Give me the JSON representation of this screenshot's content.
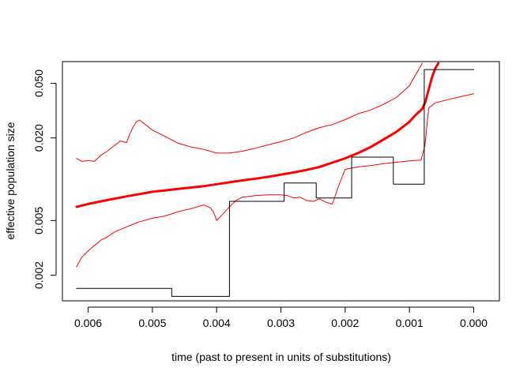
{
  "chart_data": {
    "type": "line",
    "title": "",
    "xlabel": "time (past to present in units of substitutions)",
    "ylabel": "effective population size",
    "x_reversed": true,
    "y_log": true,
    "xlim": [
      0.0064,
      -0.0004
    ],
    "ylim": [
      0.0013,
      0.072
    ],
    "x_ticks": [
      0.006,
      0.005,
      0.004,
      0.003,
      0.002,
      0.001,
      0.0
    ],
    "x_tick_labels": [
      "0.006",
      "0.005",
      "0.004",
      "0.003",
      "0.002",
      "0.001",
      "0.000"
    ],
    "y_ticks": [
      0.002,
      0.005,
      0.02,
      0.05
    ],
    "y_tick_labels": [
      "0.002",
      "0.005",
      "0.020",
      "0.050"
    ],
    "grid": false,
    "colors": {
      "estimate": "#ff0000",
      "truth": "#000000"
    },
    "series": [
      {
        "role": "median",
        "style": "thick-red",
        "x": [
          0.00618,
          0.006,
          0.0058,
          0.0056,
          0.0054,
          0.0052,
          0.005,
          0.0048,
          0.0046,
          0.0044,
          0.0042,
          0.004,
          0.0038,
          0.0036,
          0.0034,
          0.0032,
          0.003,
          0.0028,
          0.0026,
          0.0024,
          0.0022,
          0.002,
          0.0018,
          0.0016,
          0.0014,
          0.0012,
          0.001,
          0.0009,
          0.0008,
          0.00075,
          0.0007,
          0.00065,
          0.0006,
          0.00055
        ],
        "y": [
          0.0063,
          0.0066,
          0.0069,
          0.0072,
          0.0075,
          0.0078,
          0.0081,
          0.0083,
          0.0085,
          0.0087,
          0.0089,
          0.0092,
          0.0095,
          0.0098,
          0.0101,
          0.0104,
          0.0108,
          0.0112,
          0.0117,
          0.0123,
          0.0132,
          0.0142,
          0.0155,
          0.0172,
          0.0195,
          0.0222,
          0.0262,
          0.0295,
          0.0325,
          0.037,
          0.045,
          0.055,
          0.064,
          0.07
        ]
      },
      {
        "role": "upper",
        "style": "thin-red",
        "x": [
          0.00618,
          0.0061,
          0.006,
          0.0059,
          0.0058,
          0.0057,
          0.0056,
          0.0055,
          0.0054,
          0.00535,
          0.0053,
          0.00525,
          0.0052,
          0.0051,
          0.005,
          0.0048,
          0.0046,
          0.0044,
          0.0042,
          0.004,
          0.0038,
          0.0036,
          0.0034,
          0.0032,
          0.003,
          0.0028,
          0.0026,
          0.0024,
          0.0022,
          0.002,
          0.0018,
          0.0016,
          0.0014,
          0.0012,
          0.001,
          0.0009,
          0.0008
        ],
        "y": [
          0.0142,
          0.0135,
          0.0137,
          0.0135,
          0.015,
          0.016,
          0.0175,
          0.019,
          0.0185,
          0.0215,
          0.024,
          0.0262,
          0.027,
          0.0248,
          0.0228,
          0.0205,
          0.0183,
          0.0172,
          0.0165,
          0.0155,
          0.0155,
          0.016,
          0.0168,
          0.0178,
          0.0188,
          0.02,
          0.022,
          0.0238,
          0.025,
          0.0272,
          0.03,
          0.032,
          0.0352,
          0.0395,
          0.048,
          0.058,
          0.07
        ]
      },
      {
        "role": "lower",
        "style": "thin-red",
        "x": [
          0.00618,
          0.0061,
          0.006,
          0.0059,
          0.0058,
          0.0057,
          0.0056,
          0.0055,
          0.0054,
          0.0053,
          0.0052,
          0.005,
          0.0048,
          0.0046,
          0.0044,
          0.0043,
          0.0042,
          0.0041,
          0.00405,
          0.004,
          0.0039,
          0.0038,
          0.0037,
          0.0036,
          0.0034,
          0.0032,
          0.003,
          0.0029,
          0.0028,
          0.0027,
          0.0026,
          0.0025,
          0.0024,
          0.0023,
          0.0022,
          0.0021,
          0.002,
          0.0018,
          0.0016,
          0.0014,
          0.0012,
          0.001,
          0.00082,
          0.00076,
          0.0007,
          0.0006,
          0.0004,
          0.0002,
          0.0
        ],
        "y": [
          0.0023,
          0.0027,
          0.003,
          0.0033,
          0.0036,
          0.0038,
          0.0041,
          0.0043,
          0.0045,
          0.0047,
          0.0049,
          0.0052,
          0.0054,
          0.0058,
          0.0061,
          0.0063,
          0.0065,
          0.0062,
          0.0058,
          0.005,
          0.0056,
          0.0063,
          0.007,
          0.0074,
          0.0076,
          0.0077,
          0.0077,
          0.0076,
          0.0073,
          0.0074,
          0.007,
          0.0069,
          0.0072,
          0.0068,
          0.0066,
          0.009,
          0.0118,
          0.0123,
          0.0126,
          0.013,
          0.0133,
          0.0136,
          0.0138,
          0.0175,
          0.033,
          0.036,
          0.038,
          0.04,
          0.042
        ]
      },
      {
        "role": "true-trajectory",
        "style": "thin-black-step",
        "x": [
          0.00618,
          0.0047,
          0.0047,
          0.0038,
          0.0038,
          0.00295,
          0.00295,
          0.00245,
          0.00245,
          0.0019,
          0.0019,
          0.00125,
          0.00125,
          0.00077,
          0.00077,
          0.0
        ],
        "y": [
          0.0016,
          0.0016,
          0.0014,
          0.0014,
          0.0069,
          0.0069,
          0.0094,
          0.0094,
          0.0073,
          0.0073,
          0.0145,
          0.0145,
          0.0092,
          0.0092,
          0.063,
          0.063
        ]
      }
    ]
  }
}
